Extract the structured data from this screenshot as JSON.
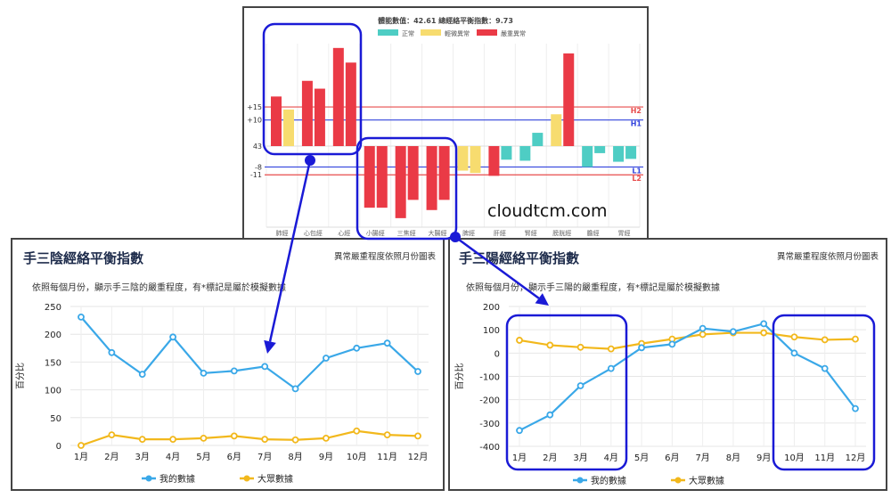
{
  "watermark": "cloudtcm.com",
  "top_chart": {
    "title": "體能數值：42.61 總經絡平衡指數：9.73",
    "legend": [
      {
        "label": "正常",
        "status": "normal",
        "color": "#4ecdc4"
      },
      {
        "label": "輕微異常",
        "status": "mild",
        "color": "#f7dc6f"
      },
      {
        "label": "嚴重異常",
        "status": "severe",
        "color": "#ea3a46"
      }
    ],
    "reference_lines": [
      {
        "axis_label": "+15",
        "value": 15,
        "tag": "H2",
        "color": "#e74c4c"
      },
      {
        "axis_label": "+10",
        "value": 10,
        "tag": "H1",
        "color": "#3344dd"
      },
      {
        "axis_label": "-8",
        "value": -8,
        "tag": "L1",
        "color": "#3344dd"
      },
      {
        "axis_label": "-11",
        "value": -11,
        "tag": "L2",
        "color": "#e74c4c"
      }
    ],
    "zero_label": "43"
  },
  "chart_data": [
    {
      "type": "bar",
      "title": "體能數值：42.61 總經絡平衡指數：9.73",
      "categories": [
        "肺經",
        "心包經",
        "心經",
        "小腸經",
        "三焦經",
        "大腸經",
        "脾經",
        "肝經",
        "腎經",
        "膀胱經",
        "膽經",
        "胃經"
      ],
      "series": [
        {
          "values": [
            19,
            25,
            37.6,
            -23.6,
            -27.6,
            -24.5,
            -9.4,
            -11.4,
            -5.6,
            12.2,
            -8,
            -6
          ],
          "status": [
            "severe",
            "severe",
            "severe",
            "severe",
            "severe",
            "severe",
            "mild",
            "severe",
            "normal",
            "mild",
            "normal",
            "normal"
          ]
        },
        {
          "values": [
            14,
            22,
            32,
            -23.6,
            -20.6,
            -20.6,
            -10.3,
            -5.2,
            5.1,
            35.5,
            -2.7,
            -4.9
          ],
          "status": [
            "mild",
            "severe",
            "severe",
            "severe",
            "severe",
            "severe",
            "mild",
            "normal",
            "normal",
            "severe",
            "normal",
            "normal"
          ]
        }
      ],
      "ylim": [
        -33,
        40
      ],
      "grid": true
    },
    {
      "type": "line",
      "title": "手三陰經絡平衡指數",
      "note": "異常嚴重程度依照月份圖表",
      "subtitle": "依照每個月份，顯示手三陰的嚴重程度，有*標記是屬於模擬數據",
      "ylabel": "百分比",
      "categories": [
        "1月",
        "2月",
        "3月",
        "4月",
        "5月",
        "6月",
        "7月",
        "8月",
        "9月",
        "10月",
        "11月",
        "12月"
      ],
      "yticks": [
        0,
        50,
        100,
        150,
        200,
        250
      ],
      "ylim": [
        0,
        250
      ],
      "series": [
        {
          "name": "我的數據",
          "color": "#3aa8e8",
          "values": [
            231,
            167,
            128,
            195,
            130,
            134,
            142,
            102,
            157,
            175,
            184,
            133
          ]
        },
        {
          "name": "大眾數據",
          "color": "#f2b81c",
          "values": [
            0,
            19,
            11,
            11,
            13,
            17,
            11,
            10,
            13,
            26,
            19,
            17
          ]
        }
      ],
      "legend": "bottom",
      "grid": true
    },
    {
      "type": "line",
      "title": "手三陽經絡平衡指數",
      "note": "異常嚴重程度依照月份圖表",
      "subtitle": "依照每個月份，顯示手三陽的嚴重程度，有*標記是屬於模擬數據",
      "ylabel": "百分比",
      "categories": [
        "1月",
        "2月",
        "3月",
        "4月",
        "5月",
        "6月",
        "7月",
        "8月",
        "9月",
        "10月",
        "11月",
        "12月"
      ],
      "yticks": [
        -400,
        -300,
        -200,
        -100,
        0,
        100,
        200
      ],
      "ylim": [
        -400,
        200
      ],
      "series": [
        {
          "name": "我的數據",
          "color": "#3aa8e8",
          "values": [
            -332,
            -265,
            -140,
            -66,
            23,
            38,
            106,
            92,
            126,
            0,
            -66,
            -238
          ]
        },
        {
          "name": "大眾數據",
          "color": "#f2b81c",
          "values": [
            55,
            34,
            25,
            18,
            41,
            60,
            80,
            87,
            87,
            69,
            57,
            60
          ]
        }
      ],
      "legend": "bottom",
      "grid": true
    }
  ],
  "annotation_color": "#1a1ad6"
}
